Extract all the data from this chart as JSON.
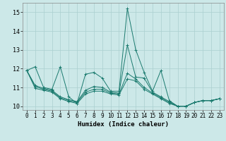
{
  "title": "",
  "xlabel": "Humidex (Indice chaleur)",
  "bg_color": "#cce8e8",
  "grid_color": "#aacfcf",
  "line_color": "#1a7a6e",
  "xlim": [
    -0.5,
    23.5
  ],
  "ylim": [
    9.8,
    15.5
  ],
  "yticks": [
    10,
    11,
    12,
    13,
    14,
    15
  ],
  "xticks": [
    0,
    1,
    2,
    3,
    4,
    5,
    6,
    7,
    8,
    9,
    10,
    11,
    12,
    13,
    14,
    15,
    16,
    17,
    18,
    19,
    20,
    21,
    22,
    23
  ],
  "series": [
    [
      11.9,
      12.1,
      11.0,
      10.9,
      12.1,
      10.5,
      10.15,
      11.7,
      11.8,
      11.5,
      10.8,
      10.8,
      15.2,
      13.0,
      11.8,
      10.8,
      11.9,
      10.3,
      10.0,
      10.0,
      10.2,
      10.3,
      10.3,
      10.4
    ],
    [
      11.9,
      11.1,
      10.95,
      10.85,
      10.5,
      10.35,
      10.25,
      10.85,
      11.05,
      11.0,
      10.75,
      10.7,
      13.25,
      11.55,
      11.5,
      10.75,
      10.5,
      10.25,
      10.0,
      10.0,
      10.2,
      10.3,
      10.3,
      10.4
    ],
    [
      11.9,
      11.05,
      10.9,
      10.8,
      10.45,
      10.3,
      10.2,
      10.75,
      10.9,
      10.9,
      10.7,
      10.65,
      11.75,
      11.45,
      11.0,
      10.7,
      10.45,
      10.2,
      10.0,
      10.0,
      10.2,
      10.3,
      10.3,
      10.4
    ],
    [
      11.9,
      10.95,
      10.85,
      10.75,
      10.4,
      10.25,
      10.15,
      10.65,
      10.8,
      10.8,
      10.65,
      10.6,
      11.45,
      11.35,
      10.9,
      10.65,
      10.4,
      10.15,
      10.0,
      10.0,
      10.2,
      10.3,
      10.3,
      10.4
    ]
  ]
}
